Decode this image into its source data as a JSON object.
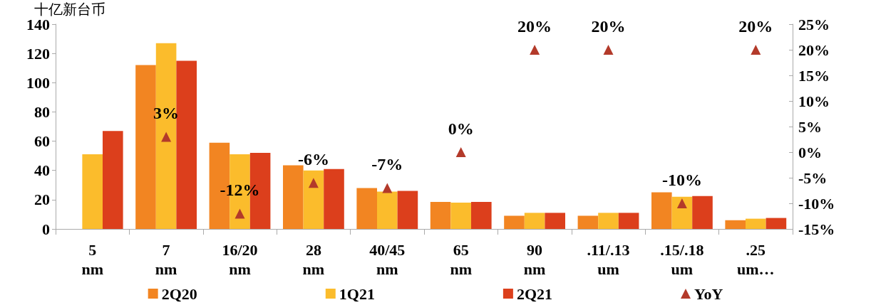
{
  "chart_data": {
    "type": "bar",
    "ylabel": "十亿新台币",
    "categories": [
      "5\nnm",
      "7\nnm",
      "16/20\nnm",
      "28\nnm",
      "40/45\nnm",
      "65\nnm",
      "90\nnm",
      ".11/.13\num",
      ".15/.18\num",
      ".25\num…"
    ],
    "series": [
      {
        "name": "2Q20",
        "color": "#f28522",
        "values": [
          null,
          112,
          59,
          43.5,
          28,
          18.5,
          9,
          9,
          25,
          6
        ]
      },
      {
        "name": "1Q21",
        "color": "#fbbc2c",
        "values": [
          51,
          127,
          51,
          40,
          25.5,
          18,
          11,
          11,
          22,
          7
        ]
      },
      {
        "name": "2Q21",
        "color": "#dc3f1c",
        "values": [
          67,
          115,
          52,
          41,
          26,
          18.5,
          11,
          11,
          22.5,
          7.5
        ]
      },
      {
        "name": "YoY",
        "type": "scatter",
        "axis": "y2",
        "marker": "triangle",
        "color": "#b33a2a",
        "values": [
          null,
          3,
          -12,
          -6,
          -7,
          0,
          20,
          20,
          -10,
          20
        ],
        "value_labels": [
          null,
          "3%",
          "-12%",
          "-6%",
          "-7%",
          "0%",
          "20%",
          "20%",
          "-10%",
          "20%"
        ]
      }
    ],
    "ylim": [
      0,
      140
    ],
    "yticks": [
      0,
      20,
      40,
      60,
      80,
      100,
      120,
      140
    ],
    "y2lim": [
      -15,
      25
    ],
    "y2ticks": [
      {
        "value": -15,
        "label": "-15%"
      },
      {
        "value": -10,
        "label": "-10%"
      },
      {
        "value": -5,
        "label": "-5%"
      },
      {
        "value": 0,
        "label": "0%"
      },
      {
        "value": 5,
        "label": "5%"
      },
      {
        "value": 10,
        "label": "10%"
      },
      {
        "value": 15,
        "label": "15%"
      },
      {
        "value": 20,
        "label": "20%"
      },
      {
        "value": 25,
        "label": "25%"
      }
    ],
    "grid": false,
    "legend": "bottom"
  }
}
